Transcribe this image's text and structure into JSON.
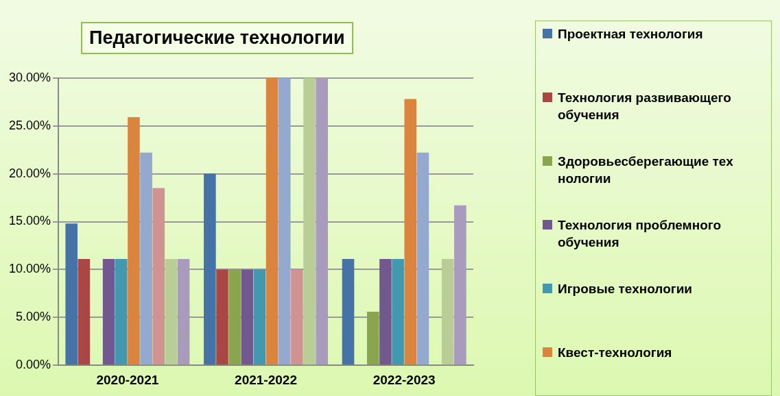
{
  "chart_data": {
    "type": "bar",
    "title": "Педагогические технологии",
    "categories": [
      "2020-2021",
      "2021-2022",
      "2022-2023"
    ],
    "series": [
      {
        "name": "Проектная технология",
        "color": "#4572a7",
        "values": [
          14.8,
          20,
          11.1
        ]
      },
      {
        "name": "Технология развивающего обучения",
        "color": "#aa4643",
        "values": [
          11.1,
          10,
          0
        ]
      },
      {
        "name": "Здоровьесберегающие тех нологии",
        "color": "#89a54e",
        "values": [
          0,
          10,
          5.6
        ]
      },
      {
        "name": "Технология проблемного обучения",
        "color": "#71588f",
        "values": [
          11.1,
          10,
          11.1
        ]
      },
      {
        "name": "Игровые технологии",
        "color": "#4198af",
        "values": [
          11.1,
          10,
          11.1
        ]
      },
      {
        "name": "Квест-технология",
        "color": "#db843d",
        "values": [
          25.9,
          30,
          27.8
        ]
      },
      {
        "color": "#93a9cf",
        "values": [
          22.2,
          30,
          22.2
        ]
      },
      {
        "color": "#d19392",
        "values": [
          18.5,
          10,
          0
        ]
      },
      {
        "color": "#b9cd96",
        "values": [
          11.1,
          30,
          11.1
        ]
      },
      {
        "color": "#a99bbd",
        "values": [
          11.1,
          30,
          16.7
        ]
      }
    ],
    "ylim": [
      0,
      30
    ],
    "yticks": [
      {
        "value": 0,
        "label": "0.00%"
      },
      {
        "value": 5,
        "label": "5.00%"
      },
      {
        "value": 10,
        "label": "10.00%"
      },
      {
        "value": 15,
        "label": "15.00%"
      },
      {
        "value": 20,
        "label": "20.00%"
      },
      {
        "value": 25,
        "label": "25.00%"
      },
      {
        "value": 30,
        "label": "30.00%"
      }
    ],
    "grid": "y",
    "legend": "right"
  }
}
